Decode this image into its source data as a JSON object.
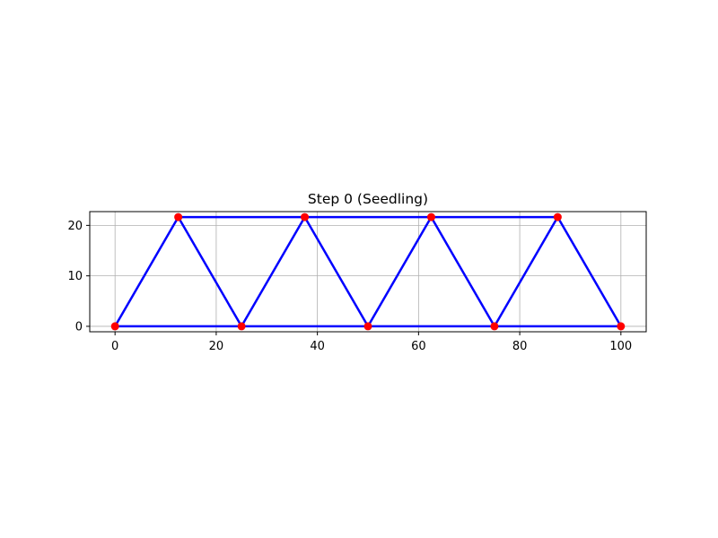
{
  "chart_data": {
    "type": "line",
    "title": "Step 0 (Seedling)",
    "xlabel": "",
    "ylabel": "",
    "xlim": [
      -5,
      105
    ],
    "ylim": [
      -1.08,
      22.73
    ],
    "xticks": [
      0,
      20,
      40,
      60,
      80,
      100
    ],
    "yticks": [
      0,
      10,
      20
    ],
    "grid": true,
    "legend": "none",
    "colors": {
      "member": "#0000ff",
      "node": "#ff0000",
      "grid": "#b0b0b0"
    },
    "nodes": [
      {
        "x": 0,
        "y": 0
      },
      {
        "x": 25,
        "y": 0
      },
      {
        "x": 50,
        "y": 0
      },
      {
        "x": 75,
        "y": 0
      },
      {
        "x": 100,
        "y": 0
      },
      {
        "x": 12.5,
        "y": 21.65
      },
      {
        "x": 37.5,
        "y": 21.65
      },
      {
        "x": 62.5,
        "y": 21.65
      },
      {
        "x": 87.5,
        "y": 21.65
      }
    ],
    "members": [
      [
        0,
        1
      ],
      [
        1,
        2
      ],
      [
        2,
        3
      ],
      [
        3,
        4
      ],
      [
        5,
        6
      ],
      [
        6,
        7
      ],
      [
        7,
        8
      ],
      [
        0,
        5
      ],
      [
        5,
        1
      ],
      [
        1,
        6
      ],
      [
        6,
        2
      ],
      [
        2,
        7
      ],
      [
        7,
        3
      ],
      [
        3,
        8
      ],
      [
        8,
        4
      ]
    ]
  }
}
